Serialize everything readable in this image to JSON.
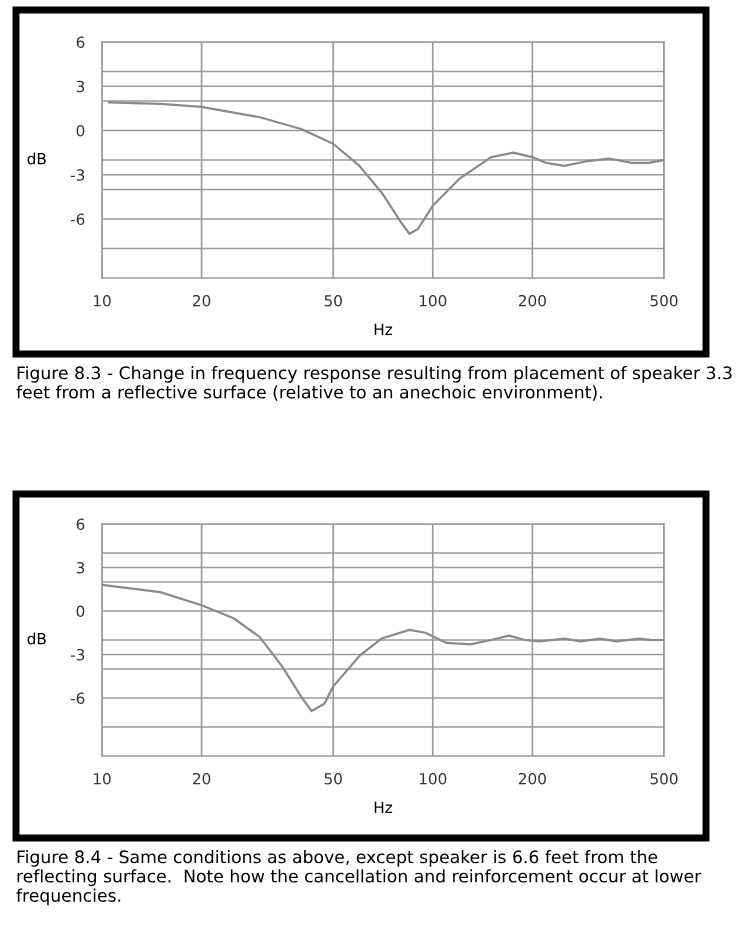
{
  "chart_data": [
    {
      "type": "line",
      "xlabel": "Hz",
      "ylabel": "dB",
      "log": "x",
      "grid": true,
      "marker": "none",
      "line_style": "solid",
      "xlim": [
        10,
        500
      ],
      "xticks": [
        10,
        20,
        50,
        100,
        200,
        500
      ],
      "ylim": [
        -10,
        6
      ],
      "yticks": [
        6,
        {
          "value": 4,
          "label": null
        },
        3,
        {
          "value": 2,
          "label": null
        },
        0,
        {
          "value": -2,
          "label": null
        },
        -3,
        {
          "value": -4,
          "label": null
        },
        -6,
        {
          "value": -8,
          "label": null
        }
      ],
      "series": [
        {
          "color": "#8a8a8a",
          "x": [
            10.5,
            15,
            20,
            30,
            40,
            50,
            60,
            70,
            80,
            85,
            90,
            100,
            120,
            150,
            175,
            200,
            220,
            250,
            290,
            340,
            400,
            450,
            500
          ],
          "values": [
            1.9,
            1.8,
            1.6,
            0.9,
            0.1,
            -0.9,
            -2.4,
            -4.2,
            -6.2,
            -7.0,
            -6.7,
            -5.1,
            -3.3,
            -1.8,
            -1.5,
            -1.8,
            -2.2,
            -2.4,
            -2.1,
            -1.9,
            -2.2,
            -2.2,
            -2.0
          ]
        }
      ],
      "annotations": [
        "Figure 8.3 - Change in frequency response resulting from placement of speaker 3.3 feet from a reflective surface (relative to an anechoic environment)."
      ]
    },
    {
      "type": "line",
      "xlabel": "Hz",
      "ylabel": "dB",
      "log": "x",
      "grid": true,
      "marker": "none",
      "line_style": "solid",
      "xlim": [
        10,
        500
      ],
      "xticks": [
        10,
        20,
        50,
        100,
        200,
        500
      ],
      "ylim": [
        -10,
        6
      ],
      "yticks": [
        6,
        {
          "value": 4,
          "label": null
        },
        3,
        {
          "value": 2,
          "label": null
        },
        0,
        {
          "value": -2,
          "label": null
        },
        -3,
        {
          "value": -4,
          "label": null
        },
        -6,
        {
          "value": -8,
          "label": null
        }
      ],
      "series": [
        {
          "color": "#8a8a8a",
          "x": [
            10,
            15,
            20,
            25,
            30,
            35,
            40,
            43,
            47,
            50,
            60,
            70,
            85,
            95,
            110,
            130,
            150,
            170,
            190,
            210,
            250,
            280,
            320,
            360,
            420,
            460,
            500
          ],
          "values": [
            1.8,
            1.3,
            0.4,
            -0.5,
            -1.8,
            -3.8,
            -5.9,
            -6.9,
            -6.4,
            -5.2,
            -3.1,
            -1.9,
            -1.3,
            -1.5,
            -2.2,
            -2.3,
            -2.0,
            -1.7,
            -2.0,
            -2.1,
            -1.9,
            -2.1,
            -1.9,
            -2.1,
            -1.9,
            -2.0,
            -2.0
          ]
        }
      ],
      "annotations": [
        "Figure 8.4 - Same conditions as above, except speaker is 6.6 feet from the reflecting surface.  Note how the cancellation and reinforcement occur at lower frequencies."
      ]
    }
  ]
}
